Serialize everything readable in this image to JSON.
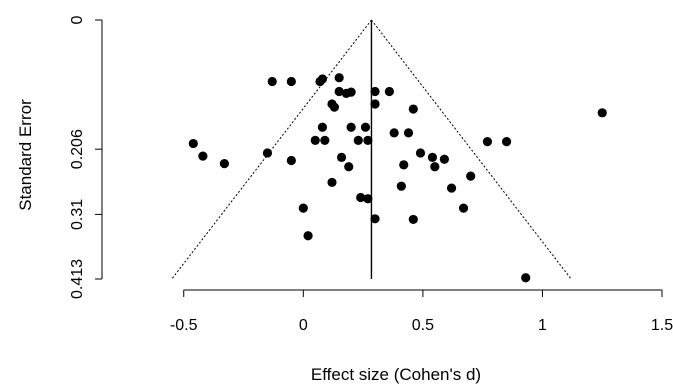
{
  "chart_data": {
    "type": "scatter",
    "title": "",
    "xlabel": "Effect size (Cohen's d)",
    "ylabel": "Standard Error",
    "xlim": [
      -0.8,
      1.5
    ],
    "ylim": [
      0,
      0.413
    ],
    "y_inverted": true,
    "xticks": [
      {
        "value": -0.5,
        "label": "-0.5"
      },
      {
        "value": 0,
        "label": "0"
      },
      {
        "value": 0.5,
        "label": "0.5"
      },
      {
        "value": 1,
        "label": "1"
      },
      {
        "value": 1.5,
        "label": "1.5"
      }
    ],
    "yticks": [
      {
        "value": 0,
        "label": "0"
      },
      {
        "value": 0.206,
        "label": "0.206"
      },
      {
        "value": 0.31,
        "label": "0.31"
      },
      {
        "value": 0.413,
        "label": "0.413"
      }
    ],
    "summary_effect": 0.285,
    "funnel": {
      "apex": [
        0.285,
        0
      ],
      "base_left": [
        -0.55,
        0.413
      ],
      "base_right": [
        1.12,
        0.413
      ],
      "style": "dotted"
    },
    "grid": false,
    "legend": "none",
    "points": [
      {
        "x": -0.13,
        "y": 0.098
      },
      {
        "x": -0.05,
        "y": 0.098
      },
      {
        "x": 0.07,
        "y": 0.098
      },
      {
        "x": 0.08,
        "y": 0.094
      },
      {
        "x": 0.15,
        "y": 0.092
      },
      {
        "x": 0.15,
        "y": 0.114
      },
      {
        "x": 0.18,
        "y": 0.117
      },
      {
        "x": 0.2,
        "y": 0.115
      },
      {
        "x": 0.3,
        "y": 0.114
      },
      {
        "x": 0.36,
        "y": 0.114
      },
      {
        "x": 0.12,
        "y": 0.134
      },
      {
        "x": 0.13,
        "y": 0.139
      },
      {
        "x": 0.3,
        "y": 0.134
      },
      {
        "x": 0.46,
        "y": 0.142
      },
      {
        "x": 1.25,
        "y": 0.148
      },
      {
        "x": 0.08,
        "y": 0.171
      },
      {
        "x": 0.2,
        "y": 0.171
      },
      {
        "x": 0.26,
        "y": 0.171
      },
      {
        "x": 0.38,
        "y": 0.18
      },
      {
        "x": 0.44,
        "y": 0.18
      },
      {
        "x": 0.05,
        "y": 0.192
      },
      {
        "x": 0.09,
        "y": 0.192
      },
      {
        "x": 0.23,
        "y": 0.192
      },
      {
        "x": 0.27,
        "y": 0.192
      },
      {
        "x": 0.77,
        "y": 0.194
      },
      {
        "x": 0.85,
        "y": 0.194
      },
      {
        "x": -0.46,
        "y": 0.197
      },
      {
        "x": -0.15,
        "y": 0.212
      },
      {
        "x": 0.49,
        "y": 0.212
      },
      {
        "x": -0.42,
        "y": 0.217
      },
      {
        "x": 0.16,
        "y": 0.219
      },
      {
        "x": 0.54,
        "y": 0.219
      },
      {
        "x": 0.59,
        "y": 0.222
      },
      {
        "x": -0.05,
        "y": 0.224
      },
      {
        "x": -0.33,
        "y": 0.229
      },
      {
        "x": 0.19,
        "y": 0.234
      },
      {
        "x": 0.42,
        "y": 0.231
      },
      {
        "x": 0.55,
        "y": 0.234
      },
      {
        "x": 0.7,
        "y": 0.249
      },
      {
        "x": 0.12,
        "y": 0.259
      },
      {
        "x": 0.41,
        "y": 0.265
      },
      {
        "x": 0.62,
        "y": 0.268
      },
      {
        "x": 0.24,
        "y": 0.283
      },
      {
        "x": 0.27,
        "y": 0.285
      },
      {
        "x": 0.67,
        "y": 0.3
      },
      {
        "x": 0,
        "y": 0.3
      },
      {
        "x": 0.3,
        "y": 0.317
      },
      {
        "x": 0.46,
        "y": 0.318
      },
      {
        "x": 0.02,
        "y": 0.344
      },
      {
        "x": 0.93,
        "y": 0.411
      }
    ]
  }
}
